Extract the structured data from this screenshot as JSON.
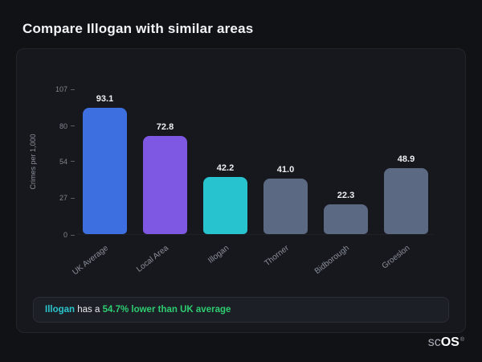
{
  "page": {
    "title": "Compare Illogan with similar areas"
  },
  "chart_data": {
    "type": "bar",
    "title": "",
    "categories": [
      "UK Average",
      "Local Area",
      "Illogan",
      "Thorner",
      "Bidborough",
      "Groeslon"
    ],
    "values": [
      93.1,
      72.8,
      42.2,
      41.0,
      22.3,
      48.9
    ],
    "value_labels": [
      "93.1",
      "72.8",
      "42.2",
      "41.0",
      "22.3",
      "48.9"
    ],
    "bar_colors": [
      "#3e6fe1",
      "#7e57e2",
      "#27c3cf",
      "#5b6a82",
      "#5b6a82",
      "#5b6a82"
    ],
    "xlabel": "",
    "ylabel": "Crimes per 1,000",
    "yticks": [
      0,
      27,
      54,
      80,
      107
    ],
    "ylim": [
      0,
      107
    ],
    "grid": false,
    "legend": null
  },
  "note": {
    "subject": "Illogan",
    "middle": " has a ",
    "highlight": "54.7% lower than UK average"
  },
  "logo": {
    "prefix": "sc",
    "suffix": "OS",
    "reg": "®"
  },
  "colors": {
    "background": "#111216",
    "card": "#17181d",
    "accent_teal": "#2bc4cc",
    "accent_green": "#2ecc71",
    "bar_blue": "#3e6fe1",
    "bar_purple": "#7e57e2",
    "bar_teal": "#27c3cf",
    "bar_slate": "#5b6a82"
  }
}
